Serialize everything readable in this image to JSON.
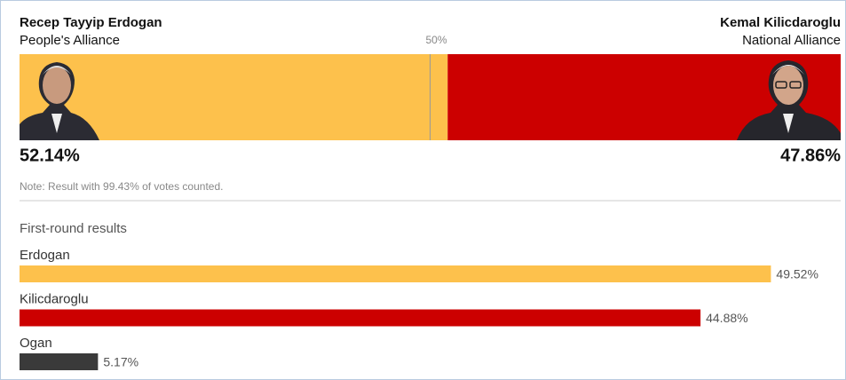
{
  "chart_data": [
    {
      "type": "runoff",
      "series": [
        {
          "name": "Recep Tayyip Erdogan",
          "alliance": "People's Alliance",
          "color": "#fdc14c",
          "values": [
            52.14
          ],
          "value_labels": [
            "52.14%"
          ]
        },
        {
          "name": "Kemal Kilicdaroglu",
          "alliance": "National Alliance",
          "color": "#cc0000",
          "values": [
            47.86
          ],
          "value_labels": [
            "47.86%"
          ]
        }
      ],
      "midline": {
        "value": 50,
        "label": "50%"
      },
      "note": "Note: Result with 99.43% of votes counted.",
      "xlim": [
        0,
        100
      ]
    },
    {
      "type": "hbar",
      "title": "First-round results",
      "categories": [
        "Erdogan",
        "Kilicdaroglu",
        "Ogan"
      ],
      "values": [
        49.52,
        44.88,
        5.17
      ],
      "value_labels": [
        "49.52%",
        "44.88%",
        "5.17%"
      ],
      "colors": [
        "#fdc14c",
        "#cc0000",
        "#3a3a3a"
      ],
      "xlim": [
        0,
        54
      ]
    }
  ]
}
